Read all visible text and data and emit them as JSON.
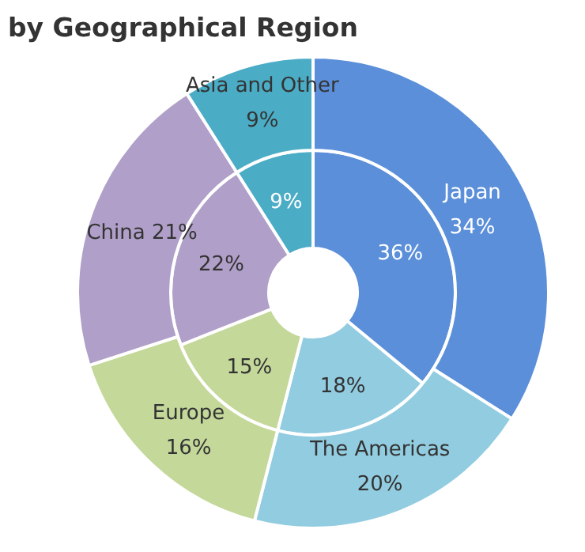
{
  "chart_data": {
    "type": "donut",
    "title": "by Geographical Region",
    "categories": [
      "Japan",
      "The Americas",
      "Europe",
      "China",
      "Asia and Other"
    ],
    "colors": [
      "#5b8fd9",
      "#92cce0",
      "#c4d89a",
      "#b09fc8",
      "#4bacc6"
    ],
    "series": [
      {
        "values": [
          36,
          18,
          15,
          22,
          9
        ],
        "value_labels": [
          "36%",
          "18%",
          "15%",
          "22%",
          "9%"
        ]
      },
      {
        "values": [
          34,
          20,
          16,
          21,
          9
        ],
        "value_labels": [
          "34%",
          "20%",
          "16%",
          "21%",
          "9%"
        ]
      }
    ]
  }
}
